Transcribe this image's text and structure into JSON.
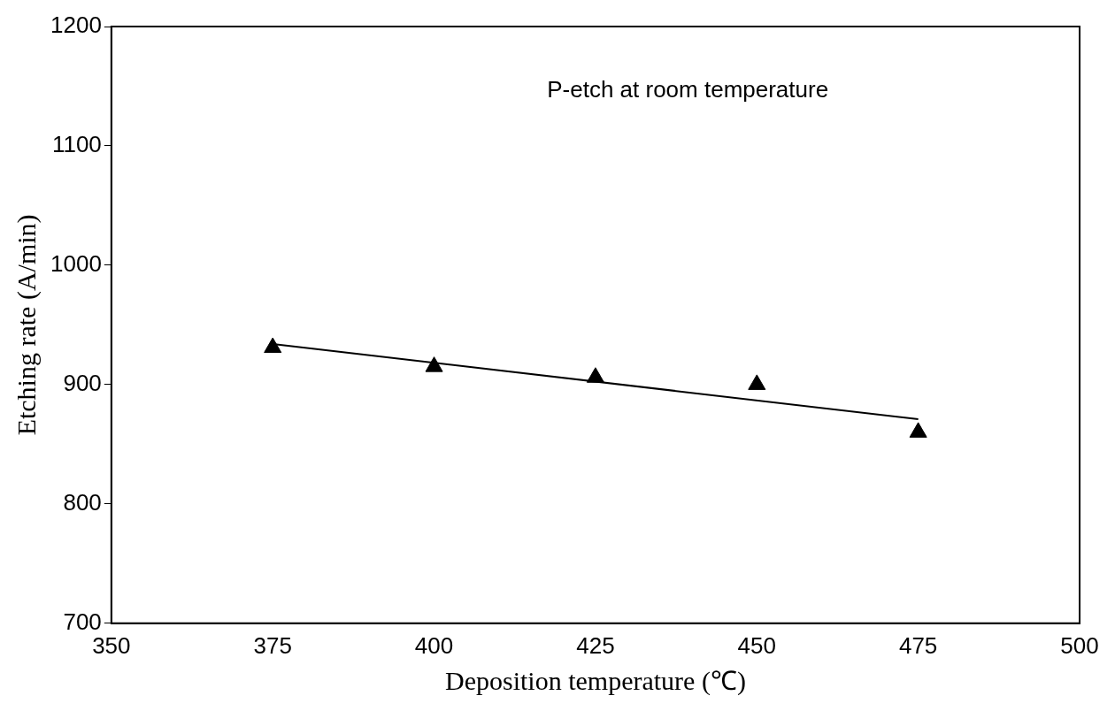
{
  "chart_data": {
    "type": "scatter",
    "xlabel": "Deposition temperature (℃)",
    "ylabel": "Etching rate (A/min)",
    "annotations": [
      "P-etch at room temperature"
    ],
    "series": [
      {
        "type": "scatter",
        "color": "#000000",
        "x": [
          375,
          400,
          425,
          450,
          475
        ],
        "values": [
          931,
          915,
          906,
          900,
          860
        ]
      },
      {
        "type": "line",
        "color": "#000000",
        "x": [
          375,
          475
        ],
        "values": [
          934,
          871
        ],
        "marker": "none",
        "line_style": "solid"
      }
    ],
    "marker": "triangle",
    "xlim": [
      350,
      500
    ],
    "xticks": [
      350,
      375,
      400,
      425,
      450,
      475,
      500
    ],
    "ylim": [
      700,
      1200
    ],
    "yticks": [
      700,
      800,
      900,
      1000,
      1100,
      1200
    ],
    "grid": false,
    "legend": false
  }
}
